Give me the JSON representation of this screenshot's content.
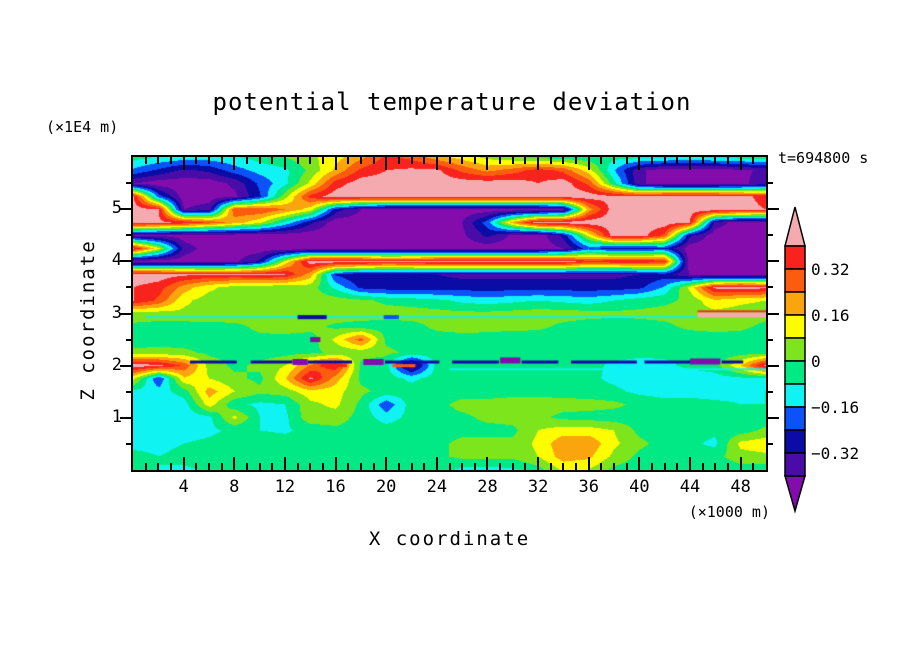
{
  "title": "potential temperature deviation",
  "time_label": "t=694800 s",
  "x_axis": {
    "label": "X coordinate",
    "unit": "(×1000 m)",
    "ticks": [
      4,
      8,
      12,
      16,
      20,
      24,
      28,
      32,
      36,
      40,
      44,
      48
    ],
    "minor_step": 1,
    "range": [
      0,
      50
    ]
  },
  "y_axis": {
    "label": "Z coordinate",
    "unit": "(×1E4 m)",
    "ticks": [
      1,
      2,
      3,
      4,
      5
    ],
    "minor_step": 0.5,
    "range": [
      0,
      6
    ]
  },
  "colorbar": {
    "tick_labels": [
      "0.32",
      "0.16",
      "0",
      "−0.16",
      "−0.32"
    ],
    "tick_values": [
      0.32,
      0.16,
      0,
      -0.16,
      -0.32
    ]
  },
  "chart_data": {
    "type": "heatmap",
    "subtype": "filled_contour",
    "title": "potential temperature deviation",
    "xlabel": "X coordinate (×1000 m)",
    "ylabel": "Z coordinate (×1E4 m)",
    "time": "t=694800 s",
    "x_range": [
      0,
      50
    ],
    "z_range": [
      0,
      6
    ],
    "palette": {
      "levels": [
        -0.4,
        -0.32,
        -0.24,
        -0.16,
        -0.08,
        0,
        0.08,
        0.16,
        0.24,
        0.32,
        0.4
      ],
      "colors_low_to_high": [
        "#840CAC",
        "#4A0CA8",
        "#0B0BA5",
        "#0B52F8",
        "#0FF3F3",
        "#00E985",
        "#7CE51C",
        "#FDFD00",
        "#FBA50E",
        "#FB5C0D",
        "#F8231D",
        "#F5AAAF"
      ]
    },
    "grid": {
      "x_start": 0,
      "x_step": 2,
      "nx": 26,
      "z_top": 6,
      "z_step": -0.25,
      "nz": 25,
      "values": [
        [
          -0.05,
          -0.09,
          -0.12,
          -0.12,
          -0.09,
          -0.05,
          0.0,
          0.06,
          0.13,
          0.22,
          0.34,
          0.3,
          0.2,
          0.13,
          0.06,
          0.02,
          -0.02,
          -0.04,
          -0.05,
          -0.06,
          -0.06,
          -0.07,
          -0.09,
          -0.07,
          -0.05,
          -0.04
        ],
        [
          -0.18,
          -0.26,
          -0.34,
          -0.3,
          -0.2,
          -0.13,
          -0.1,
          0.02,
          0.18,
          0.34,
          0.4,
          0.42,
          0.42,
          0.3,
          0.22,
          0.28,
          0.36,
          0.3,
          0.12,
          -0.15,
          -0.38,
          -0.45,
          -0.45,
          -0.45,
          -0.42,
          -0.38
        ],
        [
          -0.4,
          -0.45,
          -0.45,
          -0.45,
          -0.38,
          -0.22,
          -0.1,
          0.1,
          0.36,
          0.45,
          0.45,
          0.45,
          0.45,
          0.45,
          0.45,
          0.45,
          0.4,
          0.45,
          0.3,
          -0.05,
          -0.38,
          -0.45,
          -0.45,
          -0.45,
          -0.42,
          -0.36
        ],
        [
          0.4,
          -0.2,
          -0.45,
          -0.45,
          -0.42,
          -0.25,
          0.05,
          0.35,
          0.45,
          0.45,
          0.45,
          0.45,
          0.45,
          0.45,
          0.45,
          0.45,
          0.45,
          0.45,
          0.45,
          0.42,
          0.4,
          0.45,
          0.45,
          0.45,
          0.42,
          0.38
        ],
        [
          0.45,
          0.4,
          -0.4,
          -0.35,
          0.3,
          0.32,
          0.24,
          0.12,
          -0.28,
          -0.4,
          -0.45,
          -0.45,
          -0.45,
          -0.45,
          -0.45,
          -0.45,
          -0.45,
          -0.4,
          0.2,
          0.45,
          0.45,
          0.45,
          0.45,
          0.45,
          0.42,
          0.4
        ],
        [
          0.45,
          0.42,
          0.38,
          0.3,
          0.2,
          0.1,
          -0.1,
          -0.3,
          -0.45,
          -0.45,
          -0.45,
          -0.45,
          -0.45,
          -0.4,
          -0.2,
          0.2,
          0.45,
          0.45,
          0.45,
          0.45,
          0.45,
          0.45,
          0.4,
          -0.35,
          -0.45,
          -0.45
        ],
        [
          -0.4,
          -0.42,
          -0.45,
          -0.45,
          -0.45,
          -0.45,
          -0.45,
          -0.45,
          -0.45,
          -0.45,
          -0.45,
          -0.45,
          -0.45,
          -0.42,
          -0.3,
          -0.42,
          -0.45,
          -0.3,
          0.1,
          0.45,
          0.45,
          0.3,
          -0.3,
          -0.45,
          -0.45,
          -0.45
        ],
        [
          0.4,
          0.1,
          -0.35,
          -0.45,
          -0.45,
          -0.45,
          -0.45,
          -0.45,
          -0.45,
          -0.45,
          -0.45,
          -0.45,
          -0.45,
          -0.45,
          -0.45,
          -0.45,
          -0.45,
          -0.4,
          -0.2,
          -0.28,
          -0.28,
          -0.24,
          -0.45,
          -0.45,
          -0.45,
          -0.45
        ],
        [
          -0.45,
          -0.45,
          -0.45,
          -0.45,
          -0.42,
          -0.3,
          0.1,
          0.45,
          0.45,
          0.45,
          0.4,
          0.42,
          0.45,
          0.45,
          0.45,
          0.45,
          0.45,
          0.45,
          0.35,
          0.38,
          0.38,
          0.36,
          -0.45,
          -0.45,
          -0.45,
          -0.45
        ],
        [
          0.45,
          0.45,
          0.42,
          0.4,
          0.4,
          0.42,
          0.4,
          0.2,
          -0.25,
          -0.32,
          -0.32,
          -0.32,
          -0.32,
          -0.34,
          -0.34,
          -0.34,
          -0.34,
          -0.34,
          -0.34,
          -0.34,
          -0.32,
          -0.28,
          -0.4,
          -0.45,
          -0.45,
          -0.45
        ],
        [
          0.4,
          0.36,
          0.2,
          0.1,
          0.04,
          0.02,
          0.02,
          0.04,
          -0.1,
          -0.26,
          -0.28,
          -0.28,
          -0.28,
          -0.28,
          -0.28,
          -0.28,
          -0.28,
          -0.28,
          -0.28,
          -0.28,
          -0.26,
          -0.15,
          0.1,
          0.42,
          0.45,
          0.42
        ],
        [
          0.4,
          0.3,
          0.1,
          0.04,
          0.04,
          0.04,
          0.04,
          0.04,
          0.04,
          0.02,
          -0.02,
          -0.04,
          -0.06,
          -0.1,
          -0.12,
          -0.1,
          -0.08,
          -0.1,
          -0.12,
          -0.08,
          -0.04,
          -0.02,
          0.02,
          0.15,
          0.1,
          0.08
        ],
        [
          0.05,
          0.04,
          0.06,
          0.06,
          0.05,
          0.04,
          0.04,
          0.05,
          0.06,
          0.05,
          0.04,
          0.04,
          0.03,
          0.02,
          0.02,
          0.03,
          0.04,
          0.04,
          0.03,
          0.02,
          0.02,
          0.03,
          0.04,
          0.05,
          0.04,
          0.03
        ],
        [
          -0.02,
          -0.03,
          -0.04,
          -0.03,
          -0.02,
          0.02,
          0.04,
          0.03,
          -0.02,
          -0.04,
          -0.04,
          -0.03,
          0.02,
          0.04,
          0.04,
          0.03,
          0.02,
          -0.02,
          -0.04,
          -0.04,
          -0.03,
          -0.02,
          0.02,
          0.03,
          0.02,
          -0.02
        ],
        [
          -0.04,
          -0.04,
          -0.04,
          -0.04,
          -0.03,
          -0.02,
          -0.03,
          -0.04,
          0.1,
          0.28,
          -0.02,
          -0.04,
          -0.04,
          -0.04,
          -0.05,
          -0.06,
          -0.05,
          -0.04,
          -0.04,
          -0.05,
          -0.06,
          -0.06,
          -0.05,
          -0.04,
          -0.04,
          -0.04
        ],
        [
          0.02,
          0.03,
          0.02,
          -0.02,
          -0.03,
          -0.04,
          -0.03,
          -0.02,
          0.02,
          0.03,
          0.02,
          -0.02,
          -0.04,
          -0.04,
          -0.04,
          -0.04,
          -0.04,
          -0.04,
          -0.04,
          -0.04,
          -0.05,
          -0.06,
          -0.06,
          -0.05,
          -0.04,
          -0.04
        ],
        [
          0.45,
          0.42,
          0.3,
          0.05,
          -0.02,
          0.02,
          0.08,
          0.25,
          0.38,
          -0.02,
          -0.05,
          -0.4,
          -0.05,
          -0.03,
          -0.04,
          -0.05,
          -0.04,
          -0.04,
          -0.05,
          -0.1,
          -0.12,
          -0.1,
          -0.06,
          -0.03,
          0.15,
          0.42
        ],
        [
          0.1,
          -0.24,
          0.15,
          0.08,
          0.02,
          -0.02,
          0.15,
          0.42,
          0.2,
          -0.02,
          -0.04,
          -0.1,
          -0.04,
          -0.03,
          -0.04,
          -0.04,
          -0.04,
          -0.04,
          -0.06,
          -0.1,
          -0.13,
          -0.14,
          -0.13,
          -0.12,
          -0.1,
          -0.1
        ],
        [
          -0.1,
          -0.12,
          -0.04,
          0.2,
          0.08,
          0.02,
          0.04,
          0.13,
          0.11,
          0.02,
          -0.03,
          -0.04,
          -0.04,
          -0.04,
          -0.04,
          -0.03,
          -0.02,
          -0.03,
          -0.04,
          -0.06,
          -0.1,
          -0.12,
          -0.11,
          -0.1,
          -0.09,
          -0.08
        ],
        [
          -0.13,
          -0.14,
          -0.12,
          0.12,
          -0.06,
          -0.1,
          -0.08,
          0.06,
          0.1,
          -0.02,
          -0.22,
          -0.04,
          -0.03,
          0.03,
          0.03,
          0.04,
          0.03,
          0.03,
          0.03,
          0.02,
          -0.02,
          -0.04,
          -0.05,
          -0.07,
          -0.08,
          -0.08
        ],
        [
          -0.13,
          -0.14,
          -0.13,
          -0.1,
          0.1,
          -0.08,
          -0.1,
          0.06,
          0.04,
          -0.03,
          -0.12,
          -0.05,
          -0.03,
          -0.02,
          0.02,
          0.03,
          0.02,
          -0.02,
          -0.03,
          -0.04,
          -0.04,
          -0.04,
          -0.05,
          -0.06,
          -0.06,
          -0.05
        ],
        [
          -0.12,
          -0.13,
          -0.12,
          -0.1,
          -0.06,
          -0.08,
          -0.09,
          -0.06,
          -0.02,
          -0.03,
          -0.04,
          -0.04,
          -0.03,
          -0.02,
          -0.03,
          -0.02,
          0.08,
          0.12,
          0.12,
          0.08,
          -0.02,
          -0.04,
          -0.05,
          -0.06,
          -0.04,
          0.02
        ],
        [
          -0.1,
          -0.1,
          -0.08,
          -0.06,
          -0.04,
          -0.04,
          -0.05,
          -0.04,
          -0.03,
          -0.04,
          -0.05,
          -0.04,
          -0.02,
          0.02,
          0.03,
          0.02,
          0.1,
          0.22,
          0.22,
          0.1,
          0.02,
          -0.03,
          -0.06,
          -0.1,
          0.1,
          0.13
        ],
        [
          -0.06,
          -0.08,
          -0.06,
          -0.04,
          -0.03,
          -0.04,
          -0.04,
          -0.03,
          -0.02,
          -0.03,
          -0.04,
          -0.03,
          -0.02,
          0.02,
          0.02,
          0.02,
          0.08,
          0.2,
          0.18,
          0.06,
          -0.02,
          -0.04,
          -0.05,
          -0.03,
          0.05,
          0.06
        ],
        [
          -0.05,
          -0.08,
          -0.09,
          -0.07,
          -0.05,
          -0.06,
          -0.07,
          -0.05,
          -0.04,
          -0.04,
          -0.05,
          -0.04,
          -0.03,
          -0.1,
          -0.11,
          -0.09,
          -0.03,
          0.1,
          0.08,
          -0.02,
          -0.04,
          -0.05,
          -0.06,
          -0.05,
          -0.04,
          -0.04
        ]
      ]
    },
    "streaks": [
      {
        "x1": 1,
        "x2": 44.5,
        "z": 2.93,
        "h": 2,
        "color": "#0FF3F3"
      },
      {
        "x1": 13,
        "x2": 15.3,
        "z": 2.93,
        "h": 4,
        "color": "#0B0BA5"
      },
      {
        "x1": 19.8,
        "x2": 21,
        "z": 2.93,
        "h": 4,
        "color": "#0B52F8"
      },
      {
        "x1": 44.6,
        "x2": 50,
        "z": 3.04,
        "h": 2,
        "color": "#F8231D"
      },
      {
        "x1": 44.6,
        "x2": 50,
        "z": 2.97,
        "h": 5,
        "color": "#F5AAAF"
      },
      {
        "x1": 14,
        "x2": 14.8,
        "z": 2.5,
        "h": 5,
        "color": "#840CAC"
      },
      {
        "x1": 4.5,
        "x2": 8.2,
        "z": 2.07,
        "h": 3,
        "color": "#0B0BA5"
      },
      {
        "x1": 9.3,
        "x2": 12.6,
        "z": 2.07,
        "h": 3,
        "color": "#0B0BA5"
      },
      {
        "x1": 13.8,
        "x2": 17.3,
        "z": 2.07,
        "h": 3,
        "color": "#0B0BA5"
      },
      {
        "x1": 19.9,
        "x2": 24.2,
        "z": 2.07,
        "h": 3,
        "color": "#0B0BA5"
      },
      {
        "x1": 25.2,
        "x2": 28.9,
        "z": 2.07,
        "h": 3,
        "color": "#0B0BA5"
      },
      {
        "x1": 30.7,
        "x2": 33.6,
        "z": 2.07,
        "h": 3,
        "color": "#0B0BA5"
      },
      {
        "x1": 34.6,
        "x2": 39.8,
        "z": 2.07,
        "h": 3,
        "color": "#0B0BA5"
      },
      {
        "x1": 40.4,
        "x2": 44,
        "z": 2.07,
        "h": 3,
        "color": "#0B0BA5"
      },
      {
        "x1": 46.5,
        "x2": 48.2,
        "z": 2.07,
        "h": 3,
        "color": "#0B0BA5"
      },
      {
        "x1": 12.6,
        "x2": 13.8,
        "z": 2.07,
        "h": 6,
        "color": "#840CAC"
      },
      {
        "x1": 18.2,
        "x2": 19.8,
        "z": 2.07,
        "h": 6,
        "color": "#840CAC"
      },
      {
        "x1": 29,
        "x2": 30.6,
        "z": 2.1,
        "h": 6,
        "color": "#840CAC"
      },
      {
        "x1": 44,
        "x2": 46.4,
        "z": 2.08,
        "h": 6,
        "color": "#840CAC"
      },
      {
        "x1": 14.8,
        "x2": 16.9,
        "z": 2.0,
        "h": 3,
        "color": "#F8231D"
      },
      {
        "x1": 20.5,
        "x2": 22.3,
        "z": 2.0,
        "h": 3,
        "color": "#FB5C0D"
      },
      {
        "x1": 25,
        "x2": 50,
        "z": 1.93,
        "h": 2,
        "color": "#0FF3F3"
      }
    ]
  }
}
